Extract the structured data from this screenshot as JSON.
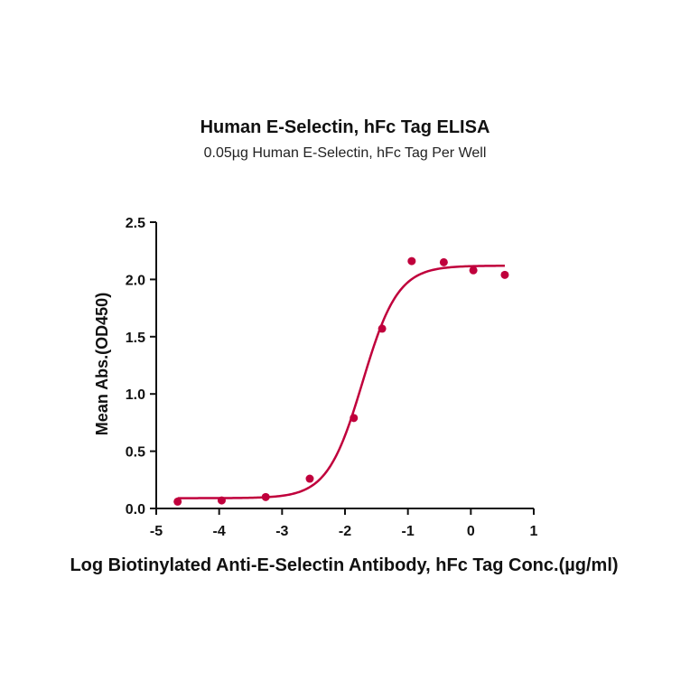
{
  "chart_data": {
    "type": "scatter",
    "title": "Human E-Selectin, hFc Tag ELISA",
    "subtitle": "0.05µg Human E-Selectin, hFc Tag Per Well",
    "xlabel": "Log Biotinylated Anti-E-Selectin Antibody, hFc Tag Conc.(µg/ml)",
    "ylabel": "Mean Abs.(OD450)",
    "xlim": [
      -5,
      1
    ],
    "ylim": [
      0,
      2.5
    ],
    "x_ticks": [
      -5,
      -4,
      -3,
      -2,
      -1,
      0,
      1
    ],
    "y_ticks": [
      0.0,
      0.5,
      1.0,
      1.5,
      2.0,
      2.5
    ],
    "y_tick_labels": [
      "0.0",
      "0.5",
      "1.0",
      "1.5",
      "2.0",
      "2.5"
    ],
    "grid": false,
    "series": [
      {
        "points": [
          {
            "x": -4.66,
            "y": 0.06
          },
          {
            "x": -3.96,
            "y": 0.07
          },
          {
            "x": -3.26,
            "y": 0.1
          },
          {
            "x": -2.56,
            "y": 0.26
          },
          {
            "x": -1.86,
            "y": 0.79
          },
          {
            "x": -1.41,
            "y": 1.57
          },
          {
            "x": -0.94,
            "y": 2.16
          },
          {
            "x": -0.43,
            "y": 2.15
          },
          {
            "x": 0.04,
            "y": 2.08
          },
          {
            "x": 0.54,
            "y": 2.04
          }
        ],
        "fit": {
          "model": "4PL",
          "bottom": 0.09,
          "top": 2.12,
          "log_ec50": -1.72,
          "hill": 1.55,
          "x_range": [
            -4.66,
            0.54
          ]
        },
        "color": "#c0003c"
      }
    ]
  }
}
